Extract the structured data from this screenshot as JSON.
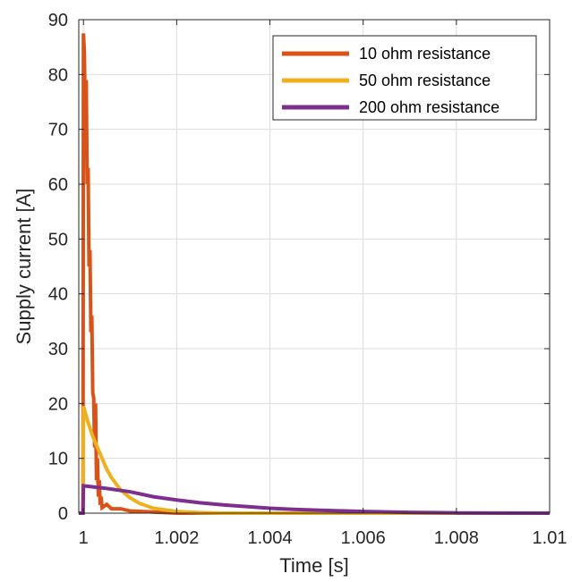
{
  "chart_data": {
    "type": "line",
    "xlabel": "Time [s]",
    "ylabel": "Supply current [A]",
    "xlim": [
      0.9999,
      1.01
    ],
    "ylim": [
      0,
      90
    ],
    "xticks": [
      1,
      1.002,
      1.004,
      1.006,
      1.008,
      1.01
    ],
    "xtick_labels": [
      "1",
      "1.002",
      "1.004",
      "1.006",
      "1.008",
      "1.01"
    ],
    "yticks": [
      0,
      10,
      20,
      30,
      40,
      50,
      60,
      70,
      80,
      90
    ],
    "ytick_labels": [
      "0",
      "10",
      "20",
      "30",
      "40",
      "50",
      "60",
      "70",
      "80",
      "90"
    ],
    "grid": true,
    "legend_position": "top-right",
    "series": [
      {
        "name": "10 ohm resistance",
        "color": "#D95319",
        "x": [
          0.9999,
          0.99999,
          1.0,
          1.00002,
          1.00004,
          1.00006,
          1.00008,
          1.0001,
          1.00012,
          1.00014,
          1.00016,
          1.00018,
          1.0002,
          1.00022,
          1.00024,
          1.00026,
          1.00028,
          1.0003,
          1.00032,
          1.00034,
          1.00036,
          1.00038,
          1.0004,
          1.0005,
          1.0006,
          1.0008,
          1.001,
          1.0015,
          1.002,
          1.01
        ],
        "y": [
          0,
          0,
          87.5,
          84,
          72,
          79,
          60,
          63,
          45,
          48,
          33,
          36,
          22,
          21,
          12,
          20,
          6,
          10,
          3,
          6,
          1.5,
          3,
          1.0,
          1.6,
          0.8,
          0.8,
          0.4,
          0.2,
          0,
          0
        ]
      },
      {
        "name": "50 ohm resistance",
        "color": "#EDB120",
        "x": [
          0.9999,
          0.99999,
          1.0,
          1.0001,
          1.0002,
          1.0003,
          1.0004,
          1.0005,
          1.0006,
          1.0008,
          1.001,
          1.0012,
          1.0015,
          1.002,
          1.0025,
          1.003,
          1.01
        ],
        "y": [
          0,
          0,
          19.5,
          16.5,
          14,
          12,
          10,
          8,
          6.5,
          4.2,
          2.8,
          1.8,
          0.9,
          0.3,
          0.1,
          0,
          0
        ]
      },
      {
        "name": "200 ohm resistance",
        "color": "#7E2F8E",
        "x": [
          0.9999,
          0.99999,
          1.0,
          1.0005,
          1.001,
          1.0015,
          1.002,
          1.0025,
          1.003,
          1.0035,
          1.004,
          1.0045,
          1.005,
          1.006,
          1.007,
          1.008,
          1.01
        ],
        "y": [
          0,
          0,
          5,
          4.5,
          3.9,
          3.0,
          2.4,
          1.9,
          1.5,
          1.2,
          0.9,
          0.7,
          0.55,
          0.3,
          0.15,
          0.05,
          0
        ]
      }
    ]
  }
}
